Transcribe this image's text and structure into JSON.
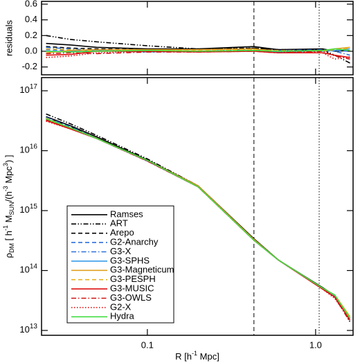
{
  "chart_data": [
    {
      "type": "line",
      "ylabel": "residuals",
      "x": [
        0.025,
        0.035,
        0.05,
        0.1,
        0.2,
        0.43,
        0.6,
        1.1,
        1.3,
        1.6
      ],
      "xlim": [
        0.0235,
        1.67
      ],
      "xlog": true,
      "xticks": [
        0.1,
        {
          "value": 1,
          "label": "1.0"
        }
      ],
      "ylim": [
        -0.3,
        0.635
      ],
      "yticks": [
        -0.2,
        {
          "value": 0,
          "label": "0.0"
        },
        0.2,
        0.4,
        0.6
      ],
      "vlines": [
        {
          "x": 0.43,
          "dash": "dashed"
        },
        {
          "x": 1.05,
          "dash": "dotted"
        }
      ],
      "series": [
        {
          "color": "#000000",
          "dash": "solid",
          "values": [
            0.1,
            0.08,
            0.05,
            0.03,
            0.03,
            0.06,
            0.02,
            0.03,
            0.0,
            0.01
          ]
        },
        {
          "color": "#000000",
          "dash": "dashdotdot",
          "values": [
            0.2,
            0.15,
            0.12,
            0.07,
            0.03,
            0.04,
            0.02,
            0.02,
            -0.05,
            -0.15
          ]
        },
        {
          "color": "#000000",
          "dash": "dashed",
          "values": [
            0.06,
            0.04,
            0.03,
            0.02,
            0.02,
            0.04,
            0.02,
            0.02,
            0.02,
            0.03
          ]
        },
        {
          "color": "#2a6fdb",
          "dash": "dashed",
          "values": [
            0.02,
            0.01,
            0.01,
            0.0,
            0.01,
            0.02,
            0.0,
            0.0,
            0.01,
            0.0
          ]
        },
        {
          "color": "#2a6fdb",
          "dash": "dashdot",
          "values": [
            0.05,
            0.03,
            0.01,
            0.01,
            0.0,
            0.02,
            0.01,
            0.02,
            0.0,
            -0.05
          ]
        },
        {
          "color": "#3a9be8",
          "dash": "solid",
          "values": [
            0.0,
            0.0,
            0.01,
            -0.01,
            0.0,
            0.01,
            -0.01,
            0.0,
            0.01,
            0.03
          ]
        },
        {
          "color": "#e0a020",
          "dash": "solid",
          "values": [
            -0.02,
            0.01,
            0.02,
            0.02,
            0.02,
            0.03,
            0.0,
            0.01,
            0.03,
            0.05
          ]
        },
        {
          "color": "#e8b020",
          "dash": "dashed",
          "values": [
            0.03,
            0.02,
            0.0,
            0.01,
            0.01,
            0.02,
            0.01,
            0.0,
            0.02,
            0.04
          ]
        },
        {
          "color": "#e01010",
          "dash": "solid",
          "values": [
            -0.05,
            -0.04,
            0.0,
            0.0,
            -0.01,
            0.0,
            -0.02,
            -0.02,
            -0.05,
            -0.08
          ]
        },
        {
          "color": "#cc1010",
          "dash": "dashdot",
          "values": [
            -0.03,
            -0.02,
            -0.03,
            -0.01,
            -0.01,
            0.0,
            -0.02,
            0.0,
            -0.06,
            -0.1
          ]
        },
        {
          "color": "#e01010",
          "dash": "dotted",
          "values": [
            -0.08,
            -0.06,
            -0.02,
            0.0,
            0.0,
            0.01,
            0.0,
            -0.02,
            -0.1,
            -0.07
          ]
        },
        {
          "color": "#40dd40",
          "dash": "solid",
          "values": [
            0.0,
            -0.01,
            0.0,
            0.01,
            0.0,
            0.01,
            0.0,
            0.01,
            0.03,
            0.01
          ]
        }
      ]
    },
    {
      "type": "line",
      "xlabel": [
        {
          "text": "R [h"
        },
        {
          "text": "-1",
          "shift": "super"
        },
        {
          "text": " Mpc]"
        }
      ],
      "ylabel": [
        {
          "text": "ρ"
        },
        {
          "text": "DM",
          "shift": "sub"
        },
        {
          "text": " [ h"
        },
        {
          "text": "-1",
          "shift": "super"
        },
        {
          "text": " M"
        },
        {
          "text": "SUN",
          "shift": "sub"
        },
        {
          "text": "/(h"
        },
        {
          "text": "-3",
          "shift": "super"
        },
        {
          "text": " Mpc"
        },
        {
          "text": "3",
          "shift": "super"
        },
        {
          "text": ") ]"
        }
      ],
      "x": [
        0.025,
        0.035,
        0.05,
        0.1,
        0.2,
        0.43,
        0.6,
        1.1,
        1.3,
        1.6
      ],
      "xlim": [
        0.0235,
        1.67
      ],
      "xlog": true,
      "xticks": [
        0.1,
        {
          "value": 1,
          "label": "1.0"
        }
      ],
      "ylim": [
        8300000000000.0,
        1.66e+17
      ],
      "ylog": true,
      "yticks": [
        {
          "value": 10000000000000.0,
          "label": [
            "10",
            "13"
          ]
        },
        {
          "value": 100000000000000.0,
          "label": [
            "10",
            "14"
          ]
        },
        {
          "value": 1000000000000000.0,
          "label": [
            "10",
            "15"
          ]
        },
        {
          "value": 1e+16,
          "label": [
            "10",
            "16"
          ]
        },
        {
          "value": 1e+17,
          "label": [
            "10",
            "17"
          ]
        }
      ],
      "vlines": [
        {
          "x": 0.43,
          "dash": "dashed"
        },
        {
          "x": 1.05,
          "dash": "dotted"
        }
      ],
      "legend": "lower left",
      "series": [
        {
          "name": "Ramses",
          "color": "#000000",
          "dash": "solid",
          "values": [
            3.7e+16,
            2.6e+16,
            1.7e+16,
            7000000000000000.0,
            2600000000000000.0,
            340000000000000.0,
            150000000000000.0,
            52000000000000.0,
            38000000000000.0,
            16000000000000.0
          ]
        },
        {
          "name": "ART",
          "color": "#000000",
          "dash": "dashdotdot",
          "values": [
            4.1e+16,
            2.8e+16,
            1.8e+16,
            7300000000000000.0,
            2600000000000000.0,
            330000000000000.0,
            150000000000000.0,
            51000000000000.0,
            36000000000000.0,
            14000000000000.0
          ]
        },
        {
          "name": "Arepo",
          "color": "#000000",
          "dash": "dashed",
          "values": [
            3.6e+16,
            2.5e+16,
            1.6e+16,
            6900000000000000.0,
            2600000000000000.0,
            330000000000000.0,
            150000000000000.0,
            51000000000000.0,
            39000000000000.0,
            16000000000000.0
          ]
        },
        {
          "name": "G2-Anarchy",
          "color": "#2a6fdb",
          "dash": "dashed",
          "values": [
            3.5e+16,
            2.4e+16,
            1.6e+16,
            6800000000000000.0,
            2500000000000000.0,
            330000000000000.0,
            150000000000000.0,
            50000000000000.0,
            38000000000000.0,
            16000000000000.0
          ]
        },
        {
          "name": "G3-X",
          "color": "#2a6fdb",
          "dash": "dashdot",
          "values": [
            3.6e+16,
            2.5e+16,
            1.6e+16,
            6900000000000000.0,
            2500000000000000.0,
            330000000000000.0,
            150000000000000.0,
            51000000000000.0,
            38000000000000.0,
            15000000000000.0
          ]
        },
        {
          "name": "G3-SPHS",
          "color": "#3a9be8",
          "dash": "solid",
          "values": [
            3.4e+16,
            2.4e+16,
            1.6e+16,
            6700000000000000.0,
            2500000000000000.0,
            320000000000000.0,
            150000000000000.0,
            50000000000000.0,
            38000000000000.0,
            16000000000000.0
          ]
        },
        {
          "name": "G3-Magneticum",
          "color": "#e0a020",
          "dash": "solid",
          "values": [
            3.3e+16,
            2.4e+16,
            1.6e+16,
            6900000000000000.0,
            2600000000000000.0,
            330000000000000.0,
            150000000000000.0,
            51000000000000.0,
            39000000000000.0,
            17000000000000.0
          ]
        },
        {
          "name": "G3-PESPH",
          "color": "#e8b020",
          "dash": "dashed",
          "values": [
            3.5e+16,
            2.4e+16,
            1.6e+16,
            6900000000000000.0,
            2500000000000000.0,
            330000000000000.0,
            150000000000000.0,
            50000000000000.0,
            39000000000000.0,
            17000000000000.0
          ]
        },
        {
          "name": "G3-MUSIC",
          "color": "#e01010",
          "dash": "solid",
          "values": [
            3.2e+16,
            2.3e+16,
            1.6e+16,
            6800000000000000.0,
            2500000000000000.0,
            320000000000000.0,
            150000000000000.0,
            49000000000000.0,
            36000000000000.0,
            15000000000000.0
          ]
        },
        {
          "name": "G3-OWLS",
          "color": "#cc1010",
          "dash": "dashdot",
          "values": [
            3.3e+16,
            2.4e+16,
            1.6e+16,
            6700000000000000.0,
            2500000000000000.0,
            320000000000000.0,
            150000000000000.0,
            50000000000000.0,
            36000000000000.0,
            14000000000000.0
          ]
        },
        {
          "name": "G2-X",
          "color": "#e01010",
          "dash": "dotted",
          "values": [
            3.1e+16,
            2.3e+16,
            1.6e+16,
            6800000000000000.0,
            2500000000000000.0,
            320000000000000.0,
            150000000000000.0,
            49000000000000.0,
            34000000000000.0,
            15000000000000.0
          ]
        },
        {
          "name": "Hydra",
          "color": "#40dd40",
          "dash": "solid",
          "values": [
            3.4e+16,
            2.4e+16,
            1.6e+16,
            6900000000000000.0,
            2500000000000000.0,
            320000000000000.0,
            150000000000000.0,
            51000000000000.0,
            39000000000000.0,
            16000000000000.0
          ]
        }
      ]
    }
  ]
}
